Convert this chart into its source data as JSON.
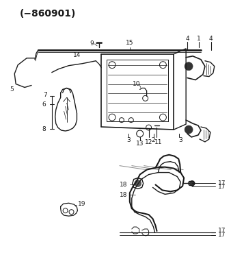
{
  "title": "(−860901)",
  "bg_color": "#ffffff",
  "line_color": "#1a1a1a",
  "title_fontsize": 10,
  "label_fontsize": 6.5,
  "fig_width": 3.38,
  "fig_height": 3.88,
  "dpi": 100
}
